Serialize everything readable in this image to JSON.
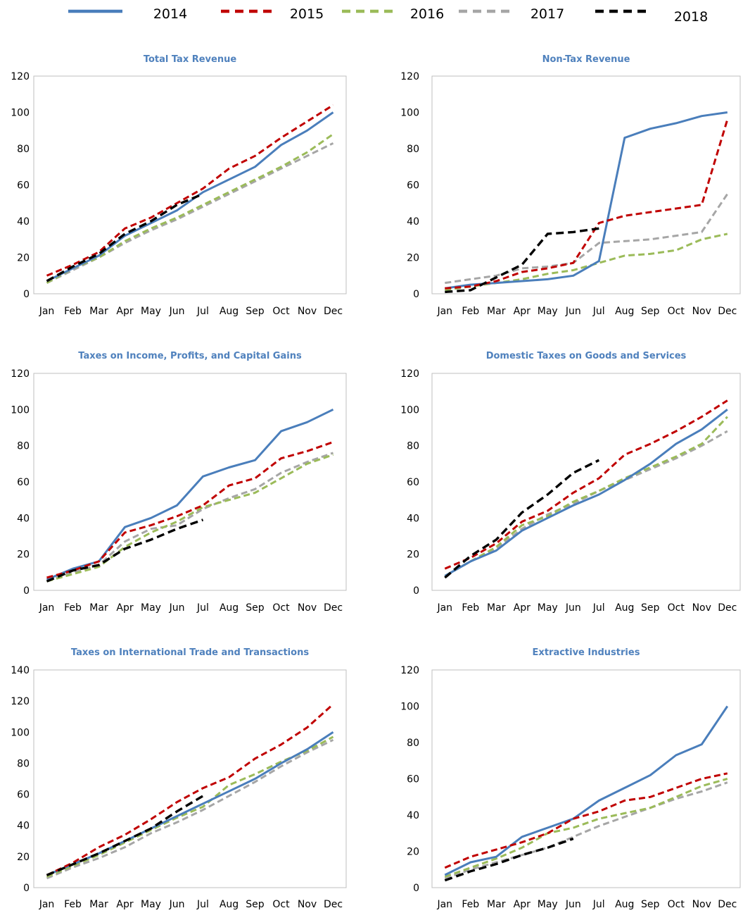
{
  "legend": [
    {
      "name": "2014",
      "color": "#4a7ebb",
      "dash": "solid"
    },
    {
      "name": "2015",
      "color": "#c00000",
      "dash": "dashed"
    },
    {
      "name": "2016",
      "color": "#9bbb59",
      "dash": "dashed"
    },
    {
      "name": "2017",
      "color": "#a6a6a6",
      "dash": "dashed"
    },
    {
      "name": "2018",
      "color": "#000000",
      "dash": "dashed"
    }
  ],
  "chart_data": [
    {
      "type": "line",
      "title": "Total Tax Revenue",
      "xlabel": "",
      "ylabel": "",
      "categories": [
        "Jan",
        "Feb",
        "Mar",
        "Apr",
        "May",
        "Jun",
        "Jul",
        "Aug",
        "Sep",
        "Oct",
        "Nov",
        "Dec"
      ],
      "ylim": [
        0,
        120
      ],
      "yticks": [
        "0",
        "20",
        "40",
        "60",
        "80",
        "100",
        "120"
      ],
      "grid": false,
      "series": [
        {
          "name": "2014",
          "values": [
            7,
            14,
            21,
            32,
            39,
            46,
            56,
            63,
            70,
            82,
            90,
            100
          ]
        },
        {
          "name": "2015",
          "values": [
            10,
            16,
            23,
            36,
            42,
            50,
            58,
            69,
            76,
            86,
            95,
            104
          ]
        },
        {
          "name": "2016",
          "values": [
            6,
            14,
            20,
            29,
            36,
            42,
            49,
            56,
            63,
            70,
            78,
            88
          ]
        },
        {
          "name": "2017",
          "values": [
            6,
            13,
            20,
            28,
            35,
            41,
            48,
            55,
            62,
            69,
            76,
            83
          ]
        },
        {
          "name": "2018",
          "values": [
            7,
            15,
            22,
            33,
            40,
            49,
            55,
            null,
            null,
            null,
            null,
            null
          ]
        }
      ]
    },
    {
      "type": "line",
      "title": "Non-Tax Revenue",
      "xlabel": "",
      "ylabel": "",
      "categories": [
        "Jan",
        "Feb",
        "Mar",
        "Apr",
        "May",
        "Jun",
        "Jul",
        "Aug",
        "Sep",
        "Oct",
        "Nov",
        "Dec"
      ],
      "ylim": [
        0,
        120
      ],
      "yticks": [
        "0",
        "20",
        "40",
        "60",
        "80",
        "100",
        "120"
      ],
      "grid": false,
      "series": [
        {
          "name": "2014",
          "values": [
            3,
            5,
            6,
            7,
            8,
            10,
            18,
            86,
            91,
            94,
            98,
            100
          ]
        },
        {
          "name": "2015",
          "values": [
            3,
            4,
            7,
            12,
            14,
            17,
            39,
            43,
            45,
            47,
            49,
            96
          ]
        },
        {
          "name": "2016",
          "values": [
            2,
            4,
            6,
            8,
            11,
            13,
            17,
            21,
            22,
            24,
            30,
            33
          ]
        },
        {
          "name": "2017",
          "values": [
            6,
            8,
            10,
            14,
            15,
            17,
            28,
            29,
            30,
            32,
            34,
            55
          ]
        },
        {
          "name": "2018",
          "values": [
            1,
            2,
            9,
            16,
            33,
            34,
            36,
            null,
            null,
            null,
            null,
            null
          ]
        }
      ]
    },
    {
      "type": "line",
      "title": "Taxes on Income, Profits, and Capital Gains",
      "xlabel": "",
      "ylabel": "",
      "categories": [
        "Jan",
        "Feb",
        "Mar",
        "Apr",
        "May",
        "Jun",
        "Jul",
        "Aug",
        "Sep",
        "Oct",
        "Nov",
        "Dec"
      ],
      "ylim": [
        0,
        120
      ],
      "yticks": [
        "0",
        "20",
        "40",
        "60",
        "80",
        "100",
        "120"
      ],
      "grid": false,
      "series": [
        {
          "name": "2014",
          "values": [
            6,
            12,
            16,
            35,
            40,
            47,
            63,
            68,
            72,
            88,
            93,
            100
          ]
        },
        {
          "name": "2015",
          "values": [
            7,
            11,
            16,
            32,
            36,
            41,
            47,
            58,
            62,
            73,
            77,
            82
          ]
        },
        {
          "name": "2016",
          "values": [
            5,
            9,
            13,
            24,
            32,
            38,
            46,
            50,
            54,
            62,
            70,
            75
          ]
        },
        {
          "name": "2017",
          "values": [
            5,
            10,
            14,
            27,
            34,
            36,
            45,
            51,
            56,
            65,
            71,
            76
          ]
        },
        {
          "name": "2018",
          "values": [
            5,
            11,
            14,
            23,
            28,
            34,
            39,
            null,
            null,
            null,
            null,
            null
          ]
        }
      ]
    },
    {
      "type": "line",
      "title": "Domestic Taxes on Goods and Services",
      "xlabel": "",
      "ylabel": "",
      "categories": [
        "Jan",
        "Feb",
        "Mar",
        "Apr",
        "May",
        "Jun",
        "Jul",
        "Aug",
        "Sep",
        "Oct",
        "Nov",
        "Dec"
      ],
      "ylim": [
        0,
        120
      ],
      "yticks": [
        "0",
        "20",
        "40",
        "60",
        "80",
        "100",
        "120"
      ],
      "grid": false,
      "series": [
        {
          "name": "2014",
          "values": [
            8,
            16,
            22,
            33,
            40,
            47,
            53,
            61,
            70,
            81,
            89,
            100
          ]
        },
        {
          "name": "2015",
          "values": [
            12,
            18,
            26,
            38,
            44,
            54,
            62,
            75,
            81,
            88,
            96,
            105
          ]
        },
        {
          "name": "2016",
          "values": [
            8,
            16,
            24,
            36,
            41,
            49,
            55,
            62,
            68,
            74,
            81,
            96
          ]
        },
        {
          "name": "2017",
          "values": [
            8,
            16,
            23,
            34,
            42,
            48,
            55,
            61,
            67,
            73,
            80,
            88
          ]
        },
        {
          "name": "2018",
          "values": [
            7,
            19,
            28,
            43,
            53,
            65,
            72,
            null,
            null,
            null,
            null,
            null
          ]
        }
      ]
    },
    {
      "type": "line",
      "title": "Taxes on International Trade and Transactions",
      "xlabel": "",
      "ylabel": "",
      "categories": [
        "Jan",
        "Feb",
        "Mar",
        "Apr",
        "May",
        "Jun",
        "Jul",
        "Aug",
        "Sep",
        "Oct",
        "Nov",
        "Dec"
      ],
      "ylim": [
        0,
        140
      ],
      "yticks": [
        "0",
        "20",
        "40",
        "60",
        "80",
        "100",
        "120",
        "140"
      ],
      "grid": false,
      "series": [
        {
          "name": "2014",
          "values": [
            8,
            15,
            22,
            30,
            38,
            46,
            54,
            62,
            70,
            80,
            89,
            100
          ]
        },
        {
          "name": "2015",
          "values": [
            8,
            16,
            26,
            34,
            44,
            55,
            64,
            71,
            83,
            92,
            103,
            118
          ]
        },
        {
          "name": "2016",
          "values": [
            7,
            14,
            21,
            29,
            37,
            45,
            52,
            66,
            73,
            81,
            88,
            97
          ]
        },
        {
          "name": "2017",
          "values": [
            6,
            13,
            19,
            26,
            35,
            42,
            50,
            59,
            68,
            78,
            87,
            95
          ]
        },
        {
          "name": "2018",
          "values": [
            8,
            15,
            22,
            30,
            38,
            49,
            59,
            null,
            null,
            null,
            null,
            null
          ]
        }
      ]
    },
    {
      "type": "line",
      "title": "Extractive Industries",
      "xlabel": "",
      "ylabel": "",
      "categories": [
        "Jan",
        "Feb",
        "Mar",
        "Apr",
        "May",
        "Jun",
        "Jul",
        "Aug",
        "Sep",
        "Oct",
        "Nov",
        "Dec"
      ],
      "ylim": [
        0,
        120
      ],
      "yticks": [
        "0",
        "20",
        "40",
        "60",
        "80",
        "100",
        "120"
      ],
      "grid": false,
      "series": [
        {
          "name": "2014",
          "values": [
            7,
            14,
            17,
            28,
            33,
            38,
            48,
            55,
            62,
            73,
            79,
            100
          ]
        },
        {
          "name": "2015",
          "values": [
            11,
            17,
            21,
            25,
            30,
            38,
            42,
            48,
            50,
            55,
            60,
            63
          ]
        },
        {
          "name": "2016",
          "values": [
            6,
            11,
            16,
            22,
            30,
            33,
            38,
            41,
            44,
            50,
            56,
            60
          ]
        },
        {
          "name": "2017",
          "values": [
            5,
            10,
            14,
            18,
            22,
            28,
            34,
            39,
            44,
            49,
            53,
            58
          ]
        },
        {
          "name": "2018",
          "values": [
            4,
            9,
            13,
            18,
            22,
            27,
            null,
            null,
            null,
            null,
            null,
            null
          ]
        }
      ]
    }
  ]
}
